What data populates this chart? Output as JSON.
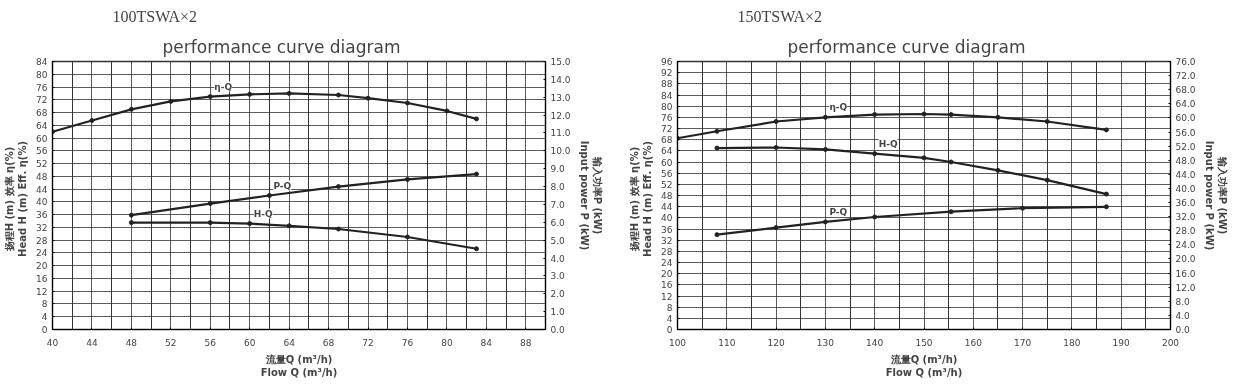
{
  "chart_data": [
    {
      "type": "line",
      "title": "100TSWA×2",
      "subtitle": "performance curve diagram",
      "xlabel": "流量Q (m³/h)\nFlow Q (m³/h)",
      "ylabel": "扬程H (m)   效率 η(%)\nHead H (m)   Eff. η(%)",
      "y2label": "输入功率P (kW)\nInput power P (kW)",
      "xlim": [
        40,
        90
      ],
      "xticks": [
        40,
        44,
        48,
        52,
        56,
        60,
        64,
        68,
        72,
        76,
        80,
        84,
        88
      ],
      "ylim": [
        0,
        84
      ],
      "yticks": [
        0,
        4,
        8,
        12,
        16,
        20,
        24,
        28,
        32,
        36,
        40,
        44,
        48,
        52,
        56,
        60,
        64,
        68,
        72,
        76,
        80,
        84
      ],
      "y2lim": [
        0,
        15
      ],
      "y2ticks": [
        {
          "value": 0,
          "label": "0.0"
        },
        {
          "value": 1,
          "label": "1.0"
        },
        {
          "value": 2,
          "label": "2.0"
        },
        {
          "value": 3,
          "label": "3.0"
        },
        {
          "value": 4,
          "label": "4.0"
        },
        {
          "value": 5,
          "label": "5.0"
        },
        {
          "value": 6,
          "label": "6.0"
        },
        {
          "value": 7,
          "label": "7.0"
        },
        {
          "value": 8,
          "label": "8.0"
        },
        {
          "value": 9,
          "label": "9.0"
        },
        {
          "value": 10,
          "label": "10.0"
        },
        {
          "value": 11,
          "label": "11.0"
        },
        {
          "value": 12,
          "label": "12.0"
        },
        {
          "value": 13,
          "label": "13.0"
        },
        {
          "value": 14,
          "label": "14.0"
        },
        {
          "value": 15,
          "label": "15.0"
        }
      ],
      "grid": true,
      "marker": "circle",
      "line_style": "solid",
      "series": [
        {
          "name": "η-Q",
          "color": "#222222",
          "x": [
            40,
            44,
            48,
            52,
            56,
            60,
            64,
            69,
            72,
            76,
            80,
            83
          ],
          "values": [
            62,
            65.5,
            69,
            71.5,
            73,
            73.7,
            74,
            73.5,
            72.5,
            71,
            68.5,
            66
          ]
        },
        {
          "name": "P-Q",
          "color": "#222222",
          "axis": "y2",
          "x": [
            48,
            56,
            62,
            69,
            76,
            83
          ],
          "values": [
            6.4,
            7.05,
            7.5,
            8.0,
            8.4,
            8.7
          ]
        },
        {
          "name": "H-Q",
          "color": "#222222",
          "x": [
            48,
            56,
            60,
            64,
            69,
            76,
            83
          ],
          "values": [
            33.5,
            33.5,
            33.2,
            32.5,
            31.5,
            29,
            25.3
          ]
        }
      ]
    },
    {
      "type": "line",
      "title": "150TSWA×2",
      "subtitle": "performance curve diagram",
      "xlabel": "流量Q (m³/h)\nFlow Q (m³/h)",
      "ylabel": "扬程H (m)   效率 η(%)\nHead H (m)   Eff. η(%)",
      "y2label": "输入功率P (kW)\nInput power P (kW)",
      "xlim": [
        100,
        200
      ],
      "xticks": [
        100,
        110,
        120,
        130,
        140,
        150,
        160,
        170,
        180,
        190,
        200
      ],
      "ylim": [
        0,
        96
      ],
      "yticks": [
        0,
        4,
        8,
        12,
        16,
        20,
        24,
        28,
        32,
        36,
        40,
        44,
        48,
        52,
        56,
        60,
        64,
        68,
        72,
        76,
        80,
        84,
        88,
        92,
        96
      ],
      "y2lim": [
        0,
        76
      ],
      "y2ticks": [
        {
          "value": 0,
          "label": "0.0"
        },
        {
          "value": 4,
          "label": "4.0"
        },
        {
          "value": 8,
          "label": "8.0"
        },
        {
          "value": 12,
          "label": "12.0"
        },
        {
          "value": 16,
          "label": "16.0"
        },
        {
          "value": 20,
          "label": "20.0"
        },
        {
          "value": 24,
          "label": "24.0"
        },
        {
          "value": 28,
          "label": "28.0"
        },
        {
          "value": 32,
          "label": "32.0"
        },
        {
          "value": 36,
          "label": "36.0"
        },
        {
          "value": 40,
          "label": "40.0"
        },
        {
          "value": 44,
          "label": "44.0"
        },
        {
          "value": 48,
          "label": "48.0"
        },
        {
          "value": 52,
          "label": "52.0"
        },
        {
          "value": 56,
          "label": "56.0"
        },
        {
          "value": 60,
          "label": "60.0"
        },
        {
          "value": 64,
          "label": "64.0"
        },
        {
          "value": 68,
          "label": "68.0"
        },
        {
          "value": 72,
          "label": "72.0"
        },
        {
          "value": 76,
          "label": "76.0"
        }
      ],
      "grid": true,
      "marker": "circle",
      "line_style": "solid",
      "series": [
        {
          "name": "η-Q",
          "color": "#222222",
          "x": [
            100,
            108,
            120,
            130,
            140,
            150,
            155.5,
            165,
            175,
            187
          ],
          "values": [
            68.5,
            71,
            74.5,
            76,
            77,
            77.2,
            77,
            76,
            74.5,
            71.5
          ]
        },
        {
          "name": "H-Q",
          "color": "#222222",
          "x": [
            108,
            120,
            130,
            140,
            150,
            155.5,
            165,
            175,
            187
          ],
          "values": [
            65,
            65.2,
            64.5,
            63,
            61.5,
            60,
            57,
            53.5,
            48.5
          ]
        },
        {
          "name": "P-Q",
          "color": "#222222",
          "axis": "y2",
          "x": [
            108,
            120,
            130,
            140,
            155.5,
            170,
            187
          ],
          "values": [
            26.9,
            28.9,
            30.5,
            31.9,
            33.4,
            34.4,
            34.8
          ]
        }
      ]
    }
  ]
}
